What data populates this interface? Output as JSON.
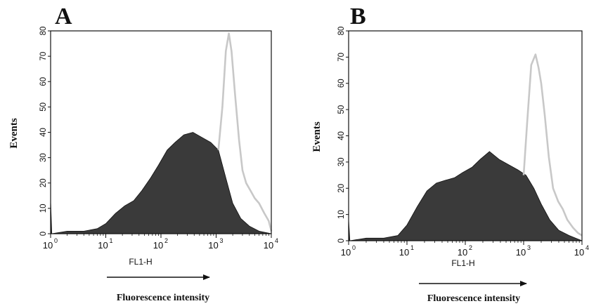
{
  "chart_data": [
    {
      "type": "area",
      "title": "A",
      "xlabel": "FL1-H",
      "ylabel": "Events",
      "x_scale": "log",
      "xlim": [
        1,
        10000
      ],
      "ylim": [
        0,
        80
      ],
      "yticks": [
        "0",
        "10",
        "20",
        "30",
        "40",
        "50",
        "60",
        "70",
        "80"
      ],
      "xticks": [
        {
          "base": "10",
          "exp": "0"
        },
        {
          "base": "10",
          "exp": "1"
        },
        {
          "base": "10",
          "exp": "2"
        },
        {
          "base": "10",
          "exp": "3"
        },
        {
          "base": "10",
          "exp": "4"
        }
      ],
      "annotation": "Fluorescence intensity",
      "grid": false,
      "series": [
        {
          "style": "filled",
          "color": "#3a3a3a",
          "points": [
            [
              1,
              13
            ],
            [
              1.05,
              0
            ],
            [
              2,
              1
            ],
            [
              4,
              1
            ],
            [
              7,
              2
            ],
            [
              10,
              4
            ],
            [
              15,
              8
            ],
            [
              22,
              11
            ],
            [
              32,
              13
            ],
            [
              45,
              17
            ],
            [
              65,
              22
            ],
            [
              90,
              27
            ],
            [
              130,
              33
            ],
            [
              180,
              36
            ],
            [
              260,
              39
            ],
            [
              380,
              40
            ],
            [
              550,
              38
            ],
            [
              800,
              36
            ],
            [
              1100,
              33
            ],
            [
              1500,
              22
            ],
            [
              2000,
              12
            ],
            [
              2800,
              6
            ],
            [
              4000,
              3
            ],
            [
              6000,
              1
            ],
            [
              10000,
              0
            ]
          ]
        },
        {
          "style": "outline",
          "color": "#c8c8c8",
          "points": [
            [
              1100,
              33
            ],
            [
              1300,
              50
            ],
            [
              1500,
              72
            ],
            [
              1700,
              79
            ],
            [
              1900,
              72
            ],
            [
              2200,
              55
            ],
            [
              2600,
              37
            ],
            [
              3000,
              25
            ],
            [
              3500,
              20
            ],
            [
              4200,
              17
            ],
            [
              5000,
              14
            ],
            [
              6000,
              12
            ],
            [
              7500,
              8
            ],
            [
              9000,
              5
            ],
            [
              10000,
              1
            ]
          ]
        }
      ]
    },
    {
      "type": "area",
      "title": "B",
      "xlabel": "FL1-H",
      "ylabel": "Events",
      "x_scale": "log",
      "xlim": [
        1,
        10000
      ],
      "ylim": [
        0,
        80
      ],
      "yticks": [
        "0",
        "10",
        "20",
        "30",
        "40",
        "50",
        "60",
        "70",
        "80"
      ],
      "xticks": [
        {
          "base": "10",
          "exp": "0"
        },
        {
          "base": "10",
          "exp": "1"
        },
        {
          "base": "10",
          "exp": "2"
        },
        {
          "base": "10",
          "exp": "3"
        },
        {
          "base": "10",
          "exp": "4"
        }
      ],
      "annotation": "Fluorescence intensity",
      "grid": false,
      "series": [
        {
          "style": "filled",
          "color": "#3a3a3a",
          "points": [
            [
              1,
              8
            ],
            [
              1.05,
              0
            ],
            [
              2,
              1
            ],
            [
              4,
              1
            ],
            [
              7,
              2
            ],
            [
              10,
              6
            ],
            [
              15,
              13
            ],
            [
              22,
              19
            ],
            [
              32,
              22
            ],
            [
              45,
              23
            ],
            [
              65,
              24
            ],
            [
              90,
              26
            ],
            [
              130,
              28
            ],
            [
              180,
              31
            ],
            [
              260,
              34
            ],
            [
              380,
              31
            ],
            [
              550,
              29
            ],
            [
              800,
              27
            ],
            [
              1100,
              25
            ],
            [
              1500,
              20
            ],
            [
              2000,
              14
            ],
            [
              2800,
              8
            ],
            [
              4000,
              4
            ],
            [
              6000,
              2
            ],
            [
              10000,
              0
            ]
          ]
        },
        {
          "style": "outline",
          "color": "#c8c8c8",
          "points": [
            [
              1000,
              25
            ],
            [
              1150,
              45
            ],
            [
              1350,
              67
            ],
            [
              1600,
              71
            ],
            [
              1800,
              66
            ],
            [
              2000,
              60
            ],
            [
              2300,
              48
            ],
            [
              2700,
              32
            ],
            [
              3200,
              20
            ],
            [
              3900,
              15
            ],
            [
              4700,
              12
            ],
            [
              5600,
              8
            ],
            [
              7000,
              5
            ],
            [
              8500,
              3
            ],
            [
              10000,
              2
            ]
          ]
        }
      ]
    }
  ]
}
